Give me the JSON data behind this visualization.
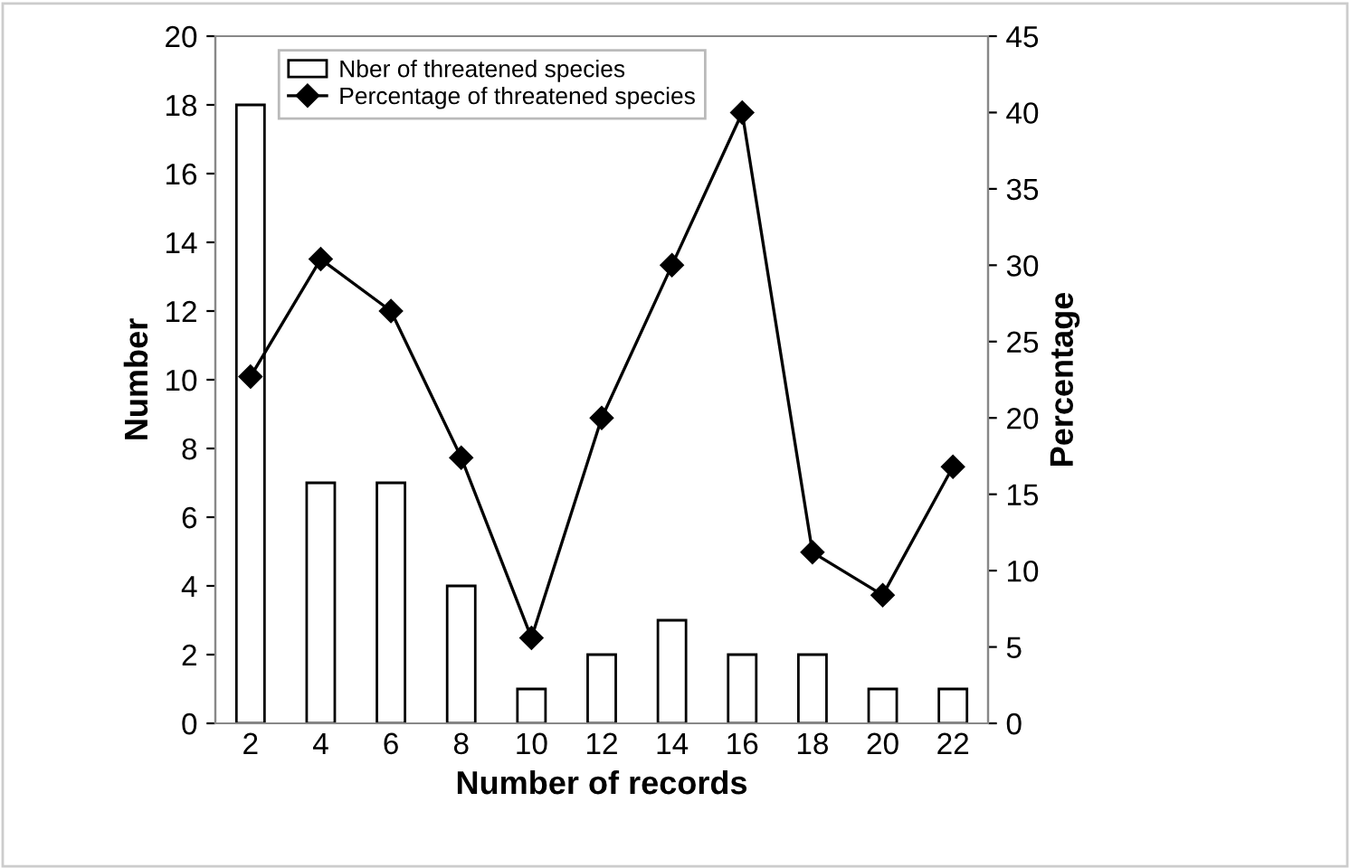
{
  "chart_data": {
    "type": "bar",
    "xlabel": "Number of records",
    "ylabel": "Number",
    "y2label": "Percentage",
    "categories": [
      "2",
      "4",
      "6",
      "8",
      "10",
      "12",
      "14",
      "16",
      "18",
      "20",
      "22"
    ],
    "series": [
      {
        "name": "Nber of threatened species",
        "color": "#ffffff",
        "values": [
          18,
          7,
          7,
          4,
          1,
          2,
          3,
          2,
          2,
          1,
          1
        ]
      },
      {
        "name": "Percentage of threatened species",
        "type": "line",
        "axis": "y2",
        "color": "#000000",
        "values": [
          22.7,
          30.4,
          27.0,
          17.4,
          5.6,
          20.0,
          30.0,
          40.0,
          11.2,
          8.4,
          16.8
        ]
      }
    ],
    "ylim": [
      0,
      20
    ],
    "yticks": [
      0,
      2,
      4,
      6,
      8,
      10,
      12,
      14,
      16,
      18,
      20
    ],
    "y2lim": [
      0,
      45
    ],
    "y2ticks": [
      0,
      5,
      10,
      15,
      20,
      25,
      30,
      35,
      40,
      45
    ],
    "grid": false,
    "legend": "top left",
    "marker": "diamond",
    "line_style": "solid"
  }
}
